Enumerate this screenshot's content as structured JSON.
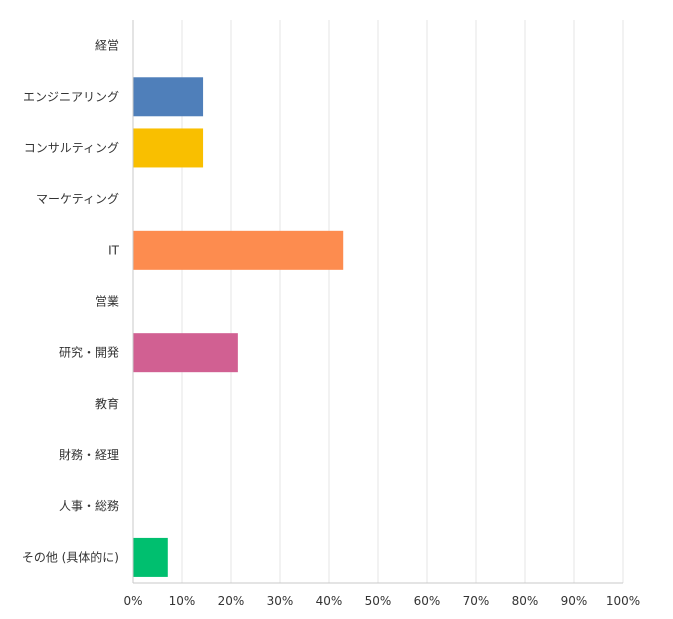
{
  "chart_data": {
    "type": "bar",
    "orientation": "horizontal",
    "categories": [
      "経営",
      "エンジニアリング",
      "コンサルティング",
      "マーケティング",
      "IT",
      "営業",
      "研究・開発",
      "教育",
      "財務・経理",
      "人事・総務",
      "その他 (具体的に)"
    ],
    "values": [
      0,
      14.3,
      14.3,
      0,
      42.9,
      0,
      21.4,
      0,
      0,
      0,
      7.1
    ],
    "colors": [
      "#cccccc",
      "#4f7fba",
      "#f9bf00",
      "#cccccc",
      "#fd8c4f",
      "#cccccc",
      "#d16092",
      "#cccccc",
      "#cccccc",
      "#cccccc",
      "#00bf6f"
    ],
    "xlim": [
      0,
      100
    ],
    "xticks": [
      "0%",
      "10%",
      "20%",
      "30%",
      "40%",
      "50%",
      "60%",
      "70%",
      "80%",
      "90%",
      "100%"
    ],
    "grid": true,
    "legend": "none",
    "gridline_color": "#e6e6e6",
    "axis_color": "#c8c8c8"
  }
}
